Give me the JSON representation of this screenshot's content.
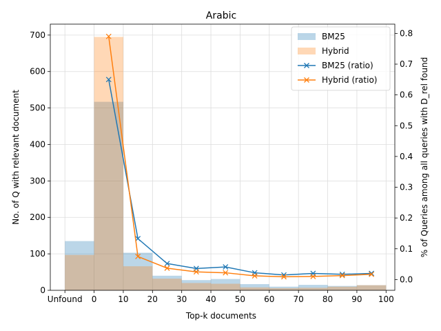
{
  "chart_data": {
    "type": "bar",
    "title": "Arabic",
    "xlabel": "Top-k documents",
    "ylabel": "No. of Q with relevant document",
    "ylabel_right": "% of Queries among all queries with D_rel found",
    "x_tick_labels": [
      "Unfound",
      "0",
      "10",
      "20",
      "30",
      "40",
      "50",
      "60",
      "70",
      "80",
      "90",
      "100"
    ],
    "xlim": [
      -15,
      103
    ],
    "ylim": [
      0,
      730
    ],
    "ylim_right": [
      -0.035,
      0.83
    ],
    "y_ticks": [
      0,
      100,
      200,
      300,
      400,
      500,
      600,
      700
    ],
    "y_ticks_right": [
      0.0,
      0.1,
      0.2,
      0.3,
      0.4,
      0.5,
      0.6,
      0.7,
      0.8
    ],
    "grid": true,
    "legend_position": "top-right",
    "bins": [
      {
        "label": "Unfound",
        "start": -10,
        "end": 0
      },
      {
        "label": "0-10",
        "start": 0,
        "end": 10
      },
      {
        "label": "10-20",
        "start": 10,
        "end": 20
      },
      {
        "label": "20-30",
        "start": 20,
        "end": 30
      },
      {
        "label": "30-40",
        "start": 30,
        "end": 40
      },
      {
        "label": "40-50",
        "start": 40,
        "end": 50
      },
      {
        "label": "50-60",
        "start": 50,
        "end": 60
      },
      {
        "label": "60-70",
        "start": 60,
        "end": 70
      },
      {
        "label": "70-80",
        "start": 70,
        "end": 80
      },
      {
        "label": "80-90",
        "start": 80,
        "end": 90
      },
      {
        "label": "90-100",
        "start": 90,
        "end": 100
      }
    ],
    "series": [
      {
        "name": "BM25",
        "kind": "bar",
        "color": "#1f77b4",
        "opacity": 0.3,
        "values": [
          135,
          517,
          103,
          40,
          28,
          31,
          17,
          10,
          15,
          12,
          14
        ]
      },
      {
        "name": "Hybrid",
        "kind": "bar",
        "color": "#ff7f0e",
        "opacity": 0.3,
        "values": [
          97,
          695,
          66,
          32,
          20,
          18,
          8,
          6,
          7,
          10,
          14
        ]
      },
      {
        "name": "BM25 (ratio)",
        "kind": "line",
        "axis": "right",
        "color": "#1f77b4",
        "marker": "x",
        "x": [
          5,
          15,
          25,
          35,
          45,
          55,
          65,
          75,
          85,
          95
        ],
        "values": [
          0.65,
          0.133,
          0.052,
          0.036,
          0.041,
          0.022,
          0.015,
          0.02,
          0.017,
          0.02
        ]
      },
      {
        "name": "Hybrid (ratio)",
        "kind": "line",
        "axis": "right",
        "color": "#ff7f0e",
        "marker": "x",
        "x": [
          5,
          15,
          25,
          35,
          45,
          55,
          65,
          75,
          85,
          95
        ],
        "values": [
          0.79,
          0.075,
          0.037,
          0.025,
          0.022,
          0.012,
          0.009,
          0.01,
          0.013,
          0.017
        ]
      }
    ]
  }
}
